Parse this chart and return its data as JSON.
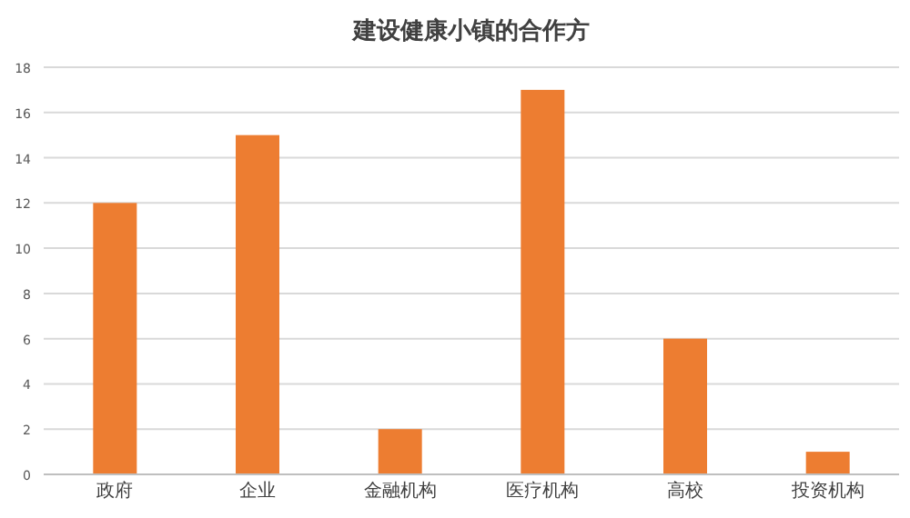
{
  "chart_data": {
    "type": "bar",
    "title": "建设健康小镇的合作方",
    "categories": [
      "政府",
      "企业",
      "金融机构",
      "医疗机构",
      "高校",
      "投资机构"
    ],
    "values": [
      12,
      15,
      2,
      17,
      6,
      1
    ],
    "color": "#ed7d31",
    "ylim": [
      0,
      18
    ],
    "yticks": [
      0,
      2,
      4,
      6,
      8,
      10,
      12,
      14,
      16,
      18
    ],
    "grid": "y"
  }
}
